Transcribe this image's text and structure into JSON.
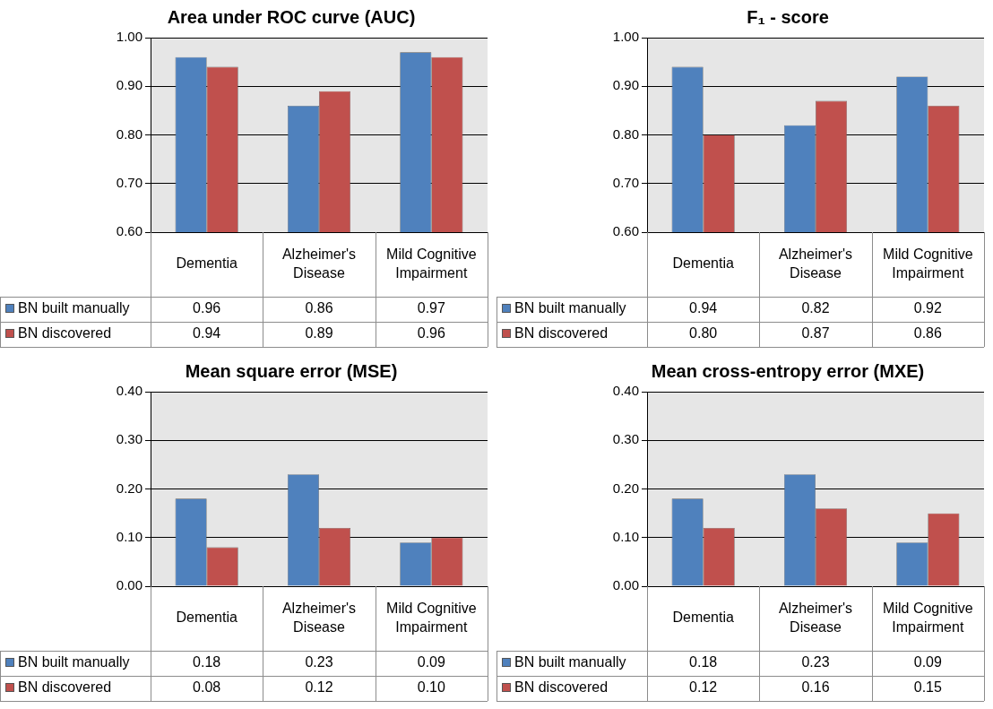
{
  "chart_data": [
    {
      "type": "bar",
      "title": "Area under ROC curve (AUC)",
      "categories": [
        "Dementia",
        "Alzheimer's Disease",
        "Mild Cognitive Impairment"
      ],
      "series": [
        {
          "name": "BN built manually",
          "color": "#4f81bd",
          "values": [
            0.96,
            0.86,
            0.97
          ],
          "value_labels": [
            "0.96",
            "0.86",
            "0.97"
          ]
        },
        {
          "name": "BN discovered",
          "color": "#c0504d",
          "values": [
            0.94,
            0.89,
            0.96
          ],
          "value_labels": [
            "0.94",
            "0.89",
            "0.96"
          ]
        }
      ],
      "ylim": [
        0.6,
        1
      ],
      "yticks": [
        {
          "value": 0.6,
          "label": "0.60"
        },
        {
          "value": 0.7,
          "label": "0.70"
        },
        {
          "value": 0.8,
          "label": "0.80"
        },
        {
          "value": 0.9,
          "label": "0.90"
        },
        {
          "value": 1,
          "label": "1.00"
        }
      ],
      "grid": "y",
      "legend": "bottom left"
    },
    {
      "type": "bar",
      "title": "F₁ - score",
      "categories": [
        "Dementia",
        "Alzheimer's Disease",
        "Mild Cognitive Impairment"
      ],
      "series": [
        {
          "name": "BN built manually",
          "color": "#4f81bd",
          "values": [
            0.94,
            0.82,
            0.92
          ],
          "value_labels": [
            "0.94",
            "0.82",
            "0.92"
          ]
        },
        {
          "name": "BN discovered",
          "color": "#c0504d",
          "values": [
            0.8,
            0.87,
            0.86
          ],
          "value_labels": [
            "0.80",
            "0.87",
            "0.86"
          ]
        }
      ],
      "ylim": [
        0.6,
        1
      ],
      "yticks": [
        {
          "value": 0.6,
          "label": "0.60"
        },
        {
          "value": 0.7,
          "label": "0.70"
        },
        {
          "value": 0.8,
          "label": "0.80"
        },
        {
          "value": 0.9,
          "label": "0.90"
        },
        {
          "value": 1,
          "label": "1.00"
        }
      ],
      "grid": "y",
      "legend": "bottom left"
    },
    {
      "type": "bar",
      "title": "Mean square error (MSE)",
      "categories": [
        "Dementia",
        "Alzheimer's Disease",
        "Mild Cognitive Impairment"
      ],
      "series": [
        {
          "name": "BN built manually",
          "color": "#4f81bd",
          "values": [
            0.18,
            0.23,
            0.09
          ],
          "value_labels": [
            "0.18",
            "0.23",
            "0.09"
          ]
        },
        {
          "name": "BN discovered",
          "color": "#c0504d",
          "values": [
            0.08,
            0.12,
            0.1
          ],
          "value_labels": [
            "0.08",
            "0.12",
            "0.10"
          ]
        }
      ],
      "ylim": [
        0,
        0.4
      ],
      "yticks": [
        {
          "value": 0,
          "label": "0.00"
        },
        {
          "value": 0.1,
          "label": "0.10"
        },
        {
          "value": 0.2,
          "label": "0.20"
        },
        {
          "value": 0.3,
          "label": "0.30"
        },
        {
          "value": 0.4,
          "label": "0.40"
        }
      ],
      "grid": "y",
      "legend": "bottom left"
    },
    {
      "type": "bar",
      "title": "Mean cross-entropy error (MXE)",
      "categories": [
        "Dementia",
        "Alzheimer's Disease",
        "Mild Cognitive Impairment"
      ],
      "series": [
        {
          "name": "BN built manually",
          "color": "#4f81bd",
          "values": [
            0.18,
            0.23,
            0.09
          ],
          "value_labels": [
            "0.18",
            "0.23",
            "0.09"
          ]
        },
        {
          "name": "BN discovered",
          "color": "#c0504d",
          "values": [
            0.12,
            0.16,
            0.15
          ],
          "value_labels": [
            "0.12",
            "0.16",
            "0.15"
          ]
        }
      ],
      "ylim": [
        0,
        0.4
      ],
      "yticks": [
        {
          "value": 0,
          "label": "0.00"
        },
        {
          "value": 0.1,
          "label": "0.10"
        },
        {
          "value": 0.2,
          "label": "0.20"
        },
        {
          "value": 0.3,
          "label": "0.30"
        },
        {
          "value": 0.4,
          "label": "0.40"
        }
      ],
      "grid": "y",
      "legend": "bottom left"
    }
  ]
}
